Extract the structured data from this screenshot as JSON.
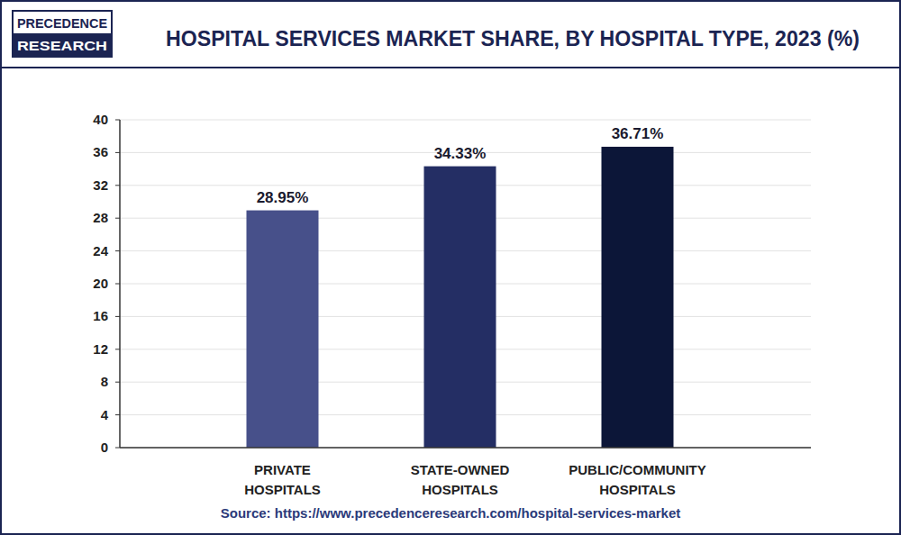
{
  "chart_data": {
    "type": "bar",
    "title": "HOSPITAL SERVICES MARKET SHARE, BY HOSPITAL TYPE, 2023 (%)",
    "logo": [
      "PRECEDENCE",
      "RESEARCH"
    ],
    "source": "Source: https://www.precedenceresearch.com/hospital-services-market",
    "categories": [
      "PRIVATE HOSPITALS",
      "STATE-OWNED HOSPITALS",
      "PUBLIC/COMMUNITY HOSPITALS"
    ],
    "values": [
      28.95,
      34.33,
      36.71
    ],
    "value_labels": [
      "28.95%",
      "34.33%",
      "36.71%"
    ],
    "colors": [
      "#47508a",
      "#242e64",
      "#0c1638"
    ],
    "ylim": [
      0,
      40
    ],
    "yticks": [
      0,
      4,
      8,
      12,
      16,
      20,
      24,
      28,
      32,
      36,
      40
    ],
    "grid": true,
    "data_labels": true
  }
}
